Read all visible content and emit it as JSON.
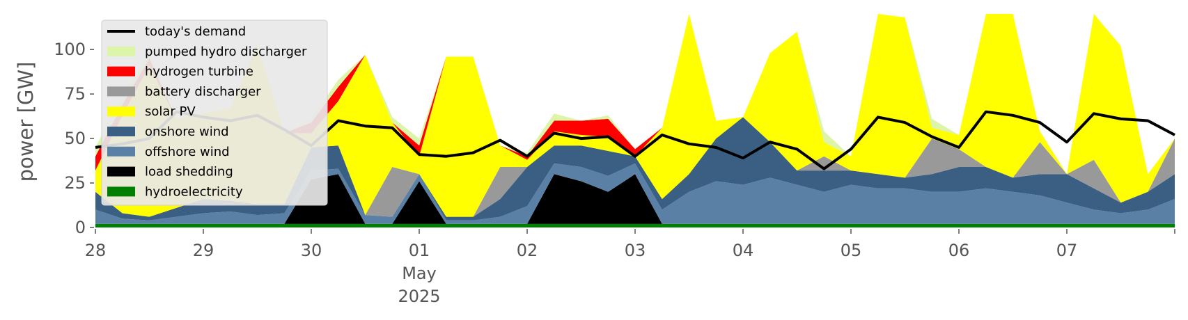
{
  "chart_data": {
    "type": "area",
    "ylabel": "power [GW]",
    "xlabel": "",
    "ylim": [
      0,
      120
    ],
    "xlim": [
      0,
      10
    ],
    "grid": false,
    "legend_position": "upper-left",
    "y_ticks": [
      0,
      25,
      50,
      75,
      100
    ],
    "x_ticks": [
      {
        "x": 0,
        "label": "28"
      },
      {
        "x": 1,
        "label": "29"
      },
      {
        "x": 2,
        "label": "30"
      },
      {
        "x": 3,
        "label": "01",
        "sub1": "May",
        "sub2": "2025"
      },
      {
        "x": 4,
        "label": "02"
      },
      {
        "x": 5,
        "label": "03"
      },
      {
        "x": 6,
        "label": "04"
      },
      {
        "x": 7,
        "label": "05"
      },
      {
        "x": 8,
        "label": "06"
      },
      {
        "x": 9,
        "label": "07"
      }
    ],
    "x": [
      0,
      0.25,
      0.5,
      0.75,
      1.0,
      1.25,
      1.5,
      1.75,
      2.0,
      2.25,
      2.5,
      2.75,
      3.0,
      3.25,
      3.5,
      3.75,
      4.0,
      4.25,
      4.5,
      4.75,
      5.0,
      5.25,
      5.5,
      5.75,
      6.0,
      6.25,
      6.5,
      6.75,
      7.0,
      7.25,
      7.5,
      7.75,
      8.0,
      8.25,
      8.5,
      8.75,
      9.0,
      9.25,
      9.5,
      9.75,
      10.0
    ],
    "series": [
      {
        "name": "hydroelectricity",
        "color": "#008000",
        "values": [
          2,
          2,
          2,
          2,
          2,
          2,
          2,
          2,
          2,
          2,
          2,
          2,
          2,
          2,
          2,
          2,
          2,
          2,
          2,
          2,
          2,
          2,
          2,
          2,
          2,
          2,
          2,
          2,
          2,
          2,
          2,
          2,
          2,
          2,
          2,
          2,
          2,
          2,
          2,
          2,
          2
        ]
      },
      {
        "name": "load shedding",
        "color": "#000000",
        "values": [
          0,
          0,
          0,
          0,
          0,
          0,
          0,
          0,
          25,
          28,
          0,
          0,
          24,
          0,
          0,
          0,
          0,
          28,
          24,
          18,
          28,
          0,
          0,
          0,
          0,
          0,
          0,
          0,
          0,
          0,
          0,
          0,
          0,
          0,
          0,
          0,
          0,
          0,
          0,
          0,
          0
        ]
      },
      {
        "name": "offshore wind",
        "color": "#5b80a5",
        "values": [
          8,
          3,
          2,
          4,
          6,
          7,
          5,
          6,
          5,
          3,
          5,
          4,
          4,
          2,
          2,
          4,
          10,
          6,
          8,
          9,
          6,
          8,
          18,
          24,
          22,
          26,
          22,
          18,
          22,
          20,
          20,
          18,
          18,
          20,
          18,
          16,
          12,
          8,
          6,
          8,
          14
        ]
      },
      {
        "name": "onshore wind",
        "color": "#3a5f83",
        "values": [
          10,
          3,
          2,
          5,
          8,
          6,
          6,
          5,
          13,
          13,
          0,
          0,
          0,
          2,
          2,
          10,
          22,
          10,
          12,
          14,
          4,
          6,
          10,
          24,
          38,
          20,
          8,
          12,
          8,
          8,
          6,
          10,
          14,
          12,
          8,
          12,
          16,
          12,
          6,
          10,
          14
        ]
      },
      {
        "name": "battery discharger",
        "color": "#999999",
        "values": [
          0,
          0,
          0,
          0,
          0,
          0,
          0,
          0,
          0,
          0,
          0,
          28,
          0,
          0,
          0,
          18,
          0,
          0,
          0,
          0,
          0,
          0,
          0,
          0,
          0,
          0,
          0,
          8,
          0,
          0,
          0,
          20,
          10,
          0,
          0,
          18,
          0,
          16,
          0,
          0,
          20
        ]
      },
      {
        "name": "solar PV",
        "color": "#ffff00",
        "values": [
          12,
          55,
          85,
          50,
          48,
          52,
          90,
          40,
          8,
          25,
          90,
          25,
          10,
          90,
          90,
          12,
          4,
          8,
          6,
          8,
          0,
          40,
          95,
          10,
          0,
          50,
          78,
          8,
          8,
          95,
          90,
          6,
          8,
          90,
          100,
          6,
          0,
          98,
          88,
          10,
          0
        ]
      },
      {
        "name": "hydrogen turbine",
        "color": "#ff0000",
        "values": [
          8,
          6,
          4,
          0,
          0,
          0,
          0,
          0,
          6,
          8,
          0,
          0,
          6,
          0,
          0,
          0,
          2,
          6,
          8,
          10,
          4,
          0,
          0,
          0,
          0,
          0,
          0,
          0,
          0,
          0,
          0,
          0,
          0,
          0,
          0,
          0,
          0,
          10,
          0,
          0,
          0
        ]
      },
      {
        "name": "pumped hydro discharger",
        "color": "#ddf5a8",
        "values": [
          5,
          5,
          3,
          0,
          0,
          0,
          0,
          0,
          2,
          4,
          0,
          3,
          4,
          0,
          0,
          0,
          2,
          4,
          0,
          2,
          0,
          0,
          0,
          0,
          0,
          0,
          0,
          6,
          0,
          0,
          0,
          5,
          0,
          0,
          0,
          0,
          0,
          6,
          0,
          0,
          0
        ]
      }
    ],
    "demand": {
      "name": "today's demand",
      "color": "#000000",
      "values": [
        45,
        47,
        50,
        65,
        62,
        60,
        63,
        55,
        46,
        60,
        57,
        56,
        41,
        40,
        42,
        49,
        40,
        53,
        50,
        51,
        40,
        52,
        47,
        45,
        39,
        48,
        44,
        33,
        44,
        62,
        59,
        51,
        45,
        65,
        63,
        59,
        48,
        64,
        61,
        60,
        52
      ]
    },
    "legend": [
      {
        "label": "today's demand",
        "kind": "line",
        "color": "#000000"
      },
      {
        "label": "pumped hydro discharger",
        "kind": "patch",
        "color": "#ddf5a8"
      },
      {
        "label": "hydrogen turbine",
        "kind": "patch",
        "color": "#ff0000"
      },
      {
        "label": "battery discharger",
        "kind": "patch",
        "color": "#999999"
      },
      {
        "label": "solar PV",
        "kind": "patch",
        "color": "#ffff00"
      },
      {
        "label": "onshore wind",
        "kind": "patch",
        "color": "#3a5f83"
      },
      {
        "label": "offshore wind",
        "kind": "patch",
        "color": "#5b80a5"
      },
      {
        "label": "load shedding",
        "kind": "patch",
        "color": "#000000"
      },
      {
        "label": "hydroelectricity",
        "kind": "patch",
        "color": "#008000"
      }
    ]
  }
}
